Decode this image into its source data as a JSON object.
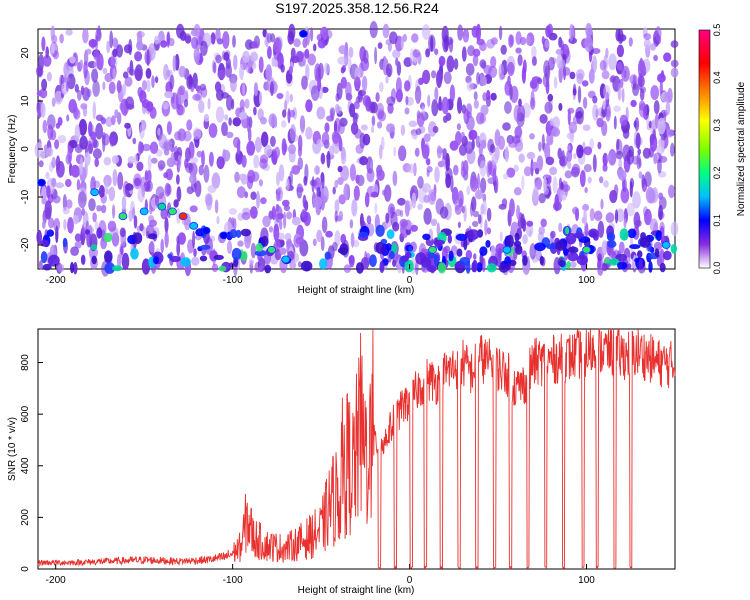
{
  "title": "S197.2025.358.12.56.R24",
  "chart_data": [
    {
      "type": "heatmap",
      "xlabel": "Height of straight line (km)",
      "ylabel": "Frequency (Hz)",
      "xlim": [
        -210,
        150
      ],
      "ylim": [
        -25,
        25
      ],
      "x_ticks": [
        -200,
        -100,
        0,
        100
      ],
      "y_ticks": [
        -20,
        -10,
        0,
        10,
        20
      ],
      "colorbar": {
        "label": "Normalized spectral amplitude",
        "range": [
          0,
          0.5
        ],
        "ticks": [
          "0.0",
          "0.1",
          "0.2",
          "0.3",
          "0.4",
          "0.5"
        ],
        "colormap": [
          "#ffffff",
          "#8a2be2",
          "#0000ff",
          "#00bfff",
          "#00ff7f",
          "#7fff00",
          "#ffff00",
          "#ff8000",
          "#ff0000",
          "#ff0080"
        ]
      },
      "notes_visible": "background mostly low amplitude (purple); stronger blobs near -20 Hz across heights, brightest ~0.45 near -128 km, -14 Hz"
    },
    {
      "type": "line",
      "xlabel": "Height of straight line (km)",
      "ylabel": "SNR (10 * v/v)",
      "xlim": [
        -210,
        150
      ],
      "ylim": [
        0,
        930
      ],
      "x_ticks": [
        -200,
        -100,
        0,
        100
      ],
      "y_ticks": [
        0,
        200,
        400,
        600,
        800
      ],
      "series": [
        {
          "color": "#e8312e",
          "points": [
            [
              -210,
              25
            ],
            [
              -190,
              25
            ],
            [
              -170,
              30
            ],
            [
              -150,
              35
            ],
            [
              -130,
              30
            ],
            [
              -115,
              35
            ],
            [
              -105,
              45
            ],
            [
              -100,
              60
            ],
            [
              -95,
              90
            ],
            [
              -92,
              200
            ],
            [
              -88,
              120
            ],
            [
              -80,
              90
            ],
            [
              -70,
              80
            ],
            [
              -60,
              110
            ],
            [
              -50,
              150
            ],
            [
              -45,
              250
            ],
            [
              -40,
              300
            ],
            [
              -35,
              420
            ],
            [
              -32,
              380
            ],
            [
              -28,
              520
            ],
            [
              -25,
              450
            ],
            [
              -20,
              500
            ],
            [
              -15,
              480
            ],
            [
              -10,
              560
            ],
            [
              -5,
              620
            ],
            [
              0,
              650
            ],
            [
              5,
              700
            ],
            [
              10,
              740
            ],
            [
              15,
              720
            ],
            [
              20,
              760
            ],
            [
              25,
              780
            ],
            [
              30,
              800
            ],
            [
              35,
              760
            ],
            [
              40,
              820
            ],
            [
              45,
              800
            ],
            [
              50,
              780
            ],
            [
              55,
              760
            ],
            [
              60,
              700
            ],
            [
              65,
              720
            ],
            [
              70,
              800
            ],
            [
              80,
              810
            ],
            [
              90,
              820
            ],
            [
              100,
              840
            ],
            [
              110,
              850
            ],
            [
              120,
              830
            ],
            [
              130,
              840
            ],
            [
              140,
              800
            ],
            [
              150,
              790
            ]
          ],
          "dropouts_x": [
            -17,
            -8,
            1,
            9,
            18,
            28,
            38,
            48,
            57,
            67,
            77,
            87,
            98,
            106,
            116,
            125
          ]
        }
      ]
    }
  ]
}
